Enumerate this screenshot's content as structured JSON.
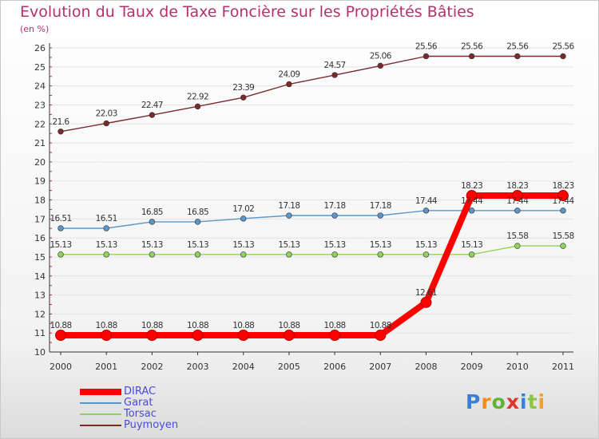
{
  "title": "Evolution du Taux de Taxe Foncière sur les Propriétés Bâties",
  "subtitle": "(en %)",
  "logo": {
    "text": "Proxiti",
    "letters": [
      "P",
      "r",
      "o",
      "x",
      "i",
      "t",
      "i"
    ],
    "colors": [
      "#3b7fd6",
      "#f28c1e",
      "#5fb336",
      "#e0342c",
      "#3b7fd6",
      "#8bc53f",
      "#f2a12c"
    ]
  },
  "chart_data": {
    "type": "line",
    "title": "Evolution du Taux de Taxe Foncière sur les Propriétés Bâties",
    "ylabel": "(en %)",
    "xlabel": "",
    "x": [
      "2000",
      "2001",
      "2002",
      "2003",
      "2004",
      "2005",
      "2006",
      "2007",
      "2008",
      "2009",
      "2010",
      "2011"
    ],
    "ylim": [
      10,
      26
    ],
    "yticks": [
      10,
      11,
      12,
      13,
      14,
      15,
      16,
      17,
      18,
      19,
      20,
      21,
      22,
      23,
      24,
      25,
      26
    ],
    "grid": "horizontal",
    "series": [
      {
        "name": "Puymoyen",
        "color": "#7a2a2a",
        "emphasis": false,
        "values": [
          21.6,
          22.03,
          22.47,
          22.92,
          23.39,
          24.09,
          24.57,
          25.06,
          25.56,
          25.56,
          25.56,
          25.56
        ],
        "labels": [
          "21.6",
          "22.03",
          "22.47",
          "22.92",
          "23.39",
          "24.09",
          "24.57",
          "25.06",
          "25.56",
          "25.56",
          "25.56",
          "25.56"
        ]
      },
      {
        "name": "Garat",
        "color": "#5a96c8",
        "emphasis": false,
        "values": [
          16.51,
          16.51,
          16.85,
          16.85,
          17.02,
          17.18,
          17.18,
          17.18,
          17.44,
          17.44,
          17.44,
          17.44
        ],
        "labels": [
          "16.51",
          "16.51",
          "16.85",
          "16.85",
          "17.02",
          "17.18",
          "17.18",
          "17.18",
          "17.44",
          "17.44",
          "17.44",
          "17.44"
        ]
      },
      {
        "name": "Torsac",
        "color": "#8fd45a",
        "emphasis": false,
        "values": [
          15.13,
          15.13,
          15.13,
          15.13,
          15.13,
          15.13,
          15.13,
          15.13,
          15.13,
          15.13,
          15.58,
          15.58
        ],
        "labels": [
          "15.13",
          "15.13",
          "15.13",
          "15.13",
          "15.13",
          "15.13",
          "15.13",
          "15.13",
          "15.13",
          "15.13",
          "15.58",
          "15.58"
        ]
      },
      {
        "name": "DIRAC",
        "color": "#ff0000",
        "emphasis": true,
        "values": [
          10.88,
          10.88,
          10.88,
          10.88,
          10.88,
          10.88,
          10.88,
          10.88,
          12.61,
          18.23,
          18.23,
          18.23
        ],
        "labels": [
          "10.88",
          "10.88",
          "10.88",
          "10.88",
          "10.88",
          "10.88",
          "10.88",
          "10.88",
          "12.61",
          "18.23",
          "18.23",
          "18.23"
        ]
      }
    ],
    "legend": {
      "placement": "bottom-left",
      "order": [
        "DIRAC",
        "Garat",
        "Torsac",
        "Puymoyen"
      ]
    }
  }
}
